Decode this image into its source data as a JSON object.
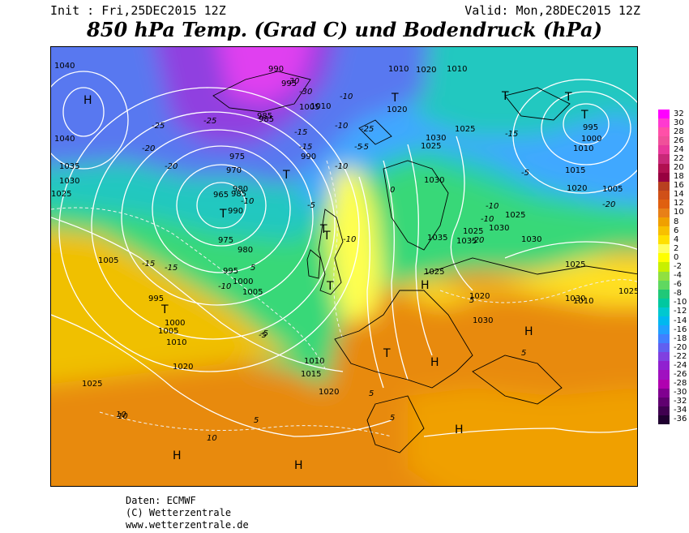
{
  "header": {
    "init": "Init : Fri,25DEC2015 12Z",
    "valid": "Valid: Mon,28DEC2015 12Z",
    "title": "850 hPa Temp. (Grad C) und Bodendruck (hPa)"
  },
  "colorbar": {
    "labels": [
      "32",
      "30",
      "28",
      "26",
      "24",
      "22",
      "20",
      "18",
      "16",
      "14",
      "12",
      "10",
      "8",
      "6",
      "4",
      "2",
      "0",
      "-2",
      "-4",
      "-6",
      "-8",
      "-10",
      "-12",
      "-14",
      "-16",
      "-18",
      "-20",
      "-22",
      "-24",
      "-26",
      "-28",
      "-30",
      "-32",
      "-34",
      "-36"
    ],
    "colors": [
      "#ff00ff",
      "#ff3ad0",
      "#ff50a8",
      "#f0509a",
      "#e8389a",
      "#c82878",
      "#b01050",
      "#980040",
      "#b84020",
      "#d05018",
      "#e06010",
      "#e88018",
      "#f0a000",
      "#f8c000",
      "#ffe000",
      "#ffff60",
      "#ffff00",
      "#c8f000",
      "#90e040",
      "#60d860",
      "#20c878",
      "#00c8a0",
      "#00c8d0",
      "#00b8f0",
      "#20a0ff",
      "#4080ff",
      "#6060f0",
      "#8040e0",
      "#9020d0",
      "#a010c0",
      "#b000b0",
      "#800090",
      "#600070",
      "#400050",
      "#200030"
    ]
  },
  "map": {
    "pressure_labels": [
      "1040",
      "1040",
      "1035",
      "1030",
      "1025",
      "1005",
      "995",
      "1000",
      "1005",
      "1010",
      "1020",
      "1025",
      "1020",
      "1015",
      "1010",
      "1005",
      "1000",
      "995",
      "990",
      "985",
      "980",
      "975",
      "970",
      "965",
      "975",
      "980",
      "985",
      "990",
      "995",
      "990",
      "985",
      "1005",
      "1010",
      "1020",
      "1030",
      "1035",
      "1025",
      "1035",
      "1030",
      "1025",
      "1030",
      "1025",
      "1030",
      "1010",
      "1005",
      "1000",
      "995",
      "1010",
      "1015",
      "1020",
      "1025",
      "1030",
      "1010",
      "1010",
      "1020",
      "1025",
      "1030",
      "1025",
      "1020",
      "1025"
    ],
    "temp_labels": [
      "-25",
      "-25",
      "-20",
      "-20",
      "-15",
      "-10",
      "-5",
      "-10",
      "-5",
      "0",
      "5",
      "10",
      "10",
      "5",
      "5",
      "5",
      "-10",
      "-15",
      "-15",
      "-10",
      "-5",
      "-5",
      "-10",
      "-10",
      "-15",
      "-5",
      "-10",
      "-20",
      "-20",
      "-25",
      "-30",
      "-30",
      "-10",
      "-15",
      "-5",
      "10",
      "5",
      "5"
    ],
    "pressure_systems": [
      "H",
      "H",
      "H",
      "H",
      "H",
      "H",
      "H",
      "T",
      "T",
      "T",
      "T",
      "T",
      "T",
      "T",
      "T",
      "T",
      "T",
      "T"
    ]
  },
  "footer": {
    "line1": "Daten: ECMWF",
    "line2": "(C) Wetterzentrale",
    "line3": "www.wetterzentrale.de"
  }
}
